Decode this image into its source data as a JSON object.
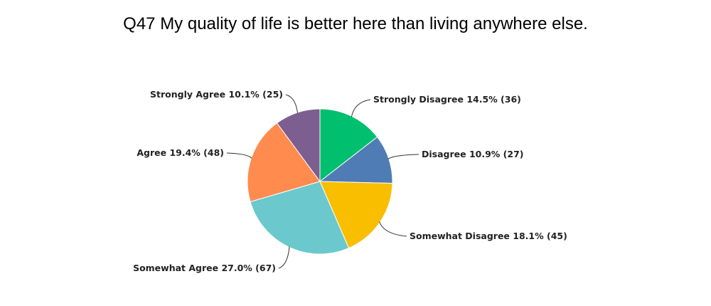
{
  "chart_data": {
    "type": "pie",
    "title": "Q47 My quality of life is better here than living anywhere else.",
    "slices": [
      {
        "label": "Strongly Disagree",
        "percent": 14.5,
        "count": 36,
        "color": "#00bf6f",
        "text": "Strongly Disagree 14.5% (36)"
      },
      {
        "label": "Disagree",
        "percent": 10.9,
        "count": 27,
        "color": "#507cb6",
        "text": "Disagree 10.9% (27)"
      },
      {
        "label": "Somewhat Disagree",
        "percent": 18.1,
        "count": 45,
        "color": "#f9be00",
        "text": "Somewhat Disagree 18.1% (45)"
      },
      {
        "label": "Somewhat Agree",
        "percent": 27.0,
        "count": 67,
        "color": "#6bc8cd",
        "text": "Somewhat Agree 27.0% (67)"
      },
      {
        "label": "Agree",
        "percent": 19.4,
        "count": 48,
        "color": "#ff8b4f",
        "text": "Agree 19.4% (48)"
      },
      {
        "label": "Strongly Agree",
        "percent": 10.1,
        "count": 25,
        "color": "#7d5e90",
        "text": "Strongly Agree 10.1% (25)"
      }
    ]
  }
}
